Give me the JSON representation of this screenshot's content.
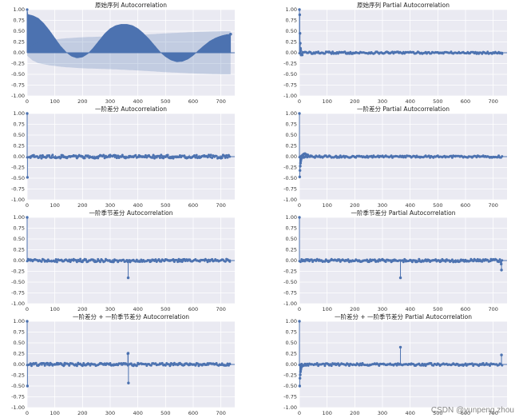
{
  "watermark": "CSDN @yunpeng.zhou",
  "style": {
    "background": "#eaeaf2",
    "grid": "#ffffff",
    "series_color": "#4c72b0",
    "band_color": "#4c72b0"
  },
  "chart_data": [
    {
      "type": "stem",
      "title": "原始序列 Autocorrelation",
      "xlim": [
        0,
        750
      ],
      "ylim": [
        -1.0,
        1.0
      ],
      "xticks": [
        "0",
        "100",
        "200",
        "300",
        "400",
        "500",
        "600",
        "700"
      ],
      "yticks": [
        "-1.00",
        "-0.75",
        "-0.50",
        "-0.25",
        "0.00",
        "0.25",
        "0.50",
        "0.75",
        "1.00"
      ],
      "series": [
        {
          "kind": "wave",
          "points": [
            [
              0,
              1.0
            ],
            [
              1,
              0.89
            ],
            [
              20,
              0.86
            ],
            [
              40,
              0.8
            ],
            [
              60,
              0.68
            ],
            [
              80,
              0.52
            ],
            [
              100,
              0.34
            ],
            [
              120,
              0.16
            ],
            [
              140,
              0.02
            ],
            [
              160,
              -0.08
            ],
            [
              180,
              -0.12
            ],
            [
              200,
              -0.1
            ],
            [
              220,
              -0.02
            ],
            [
              240,
              0.12
            ],
            [
              260,
              0.28
            ],
            [
              280,
              0.44
            ],
            [
              300,
              0.56
            ],
            [
              320,
              0.63
            ],
            [
              340,
              0.66
            ],
            [
              360,
              0.66
            ],
            [
              380,
              0.63
            ],
            [
              400,
              0.56
            ],
            [
              420,
              0.45
            ],
            [
              440,
              0.32
            ],
            [
              460,
              0.17
            ],
            [
              480,
              0.02
            ],
            [
              500,
              -0.09
            ],
            [
              520,
              -0.17
            ],
            [
              540,
              -0.21
            ],
            [
              560,
              -0.2
            ],
            [
              580,
              -0.15
            ],
            [
              600,
              -0.06
            ],
            [
              620,
              0.06
            ],
            [
              640,
              0.17
            ],
            [
              660,
              0.27
            ],
            [
              680,
              0.34
            ],
            [
              700,
              0.39
            ],
            [
              720,
              0.42
            ],
            [
              735,
              0.43
            ]
          ]
        },
        {
          "kind": "band",
          "points": [
            [
              0,
              0.07
            ],
            [
              20,
              0.18
            ],
            [
              40,
              0.24
            ],
            [
              80,
              0.29
            ],
            [
              130,
              0.33
            ],
            [
              200,
              0.36
            ],
            [
              300,
              0.38
            ],
            [
              400,
              0.41
            ],
            [
              500,
              0.45
            ],
            [
              600,
              0.48
            ],
            [
              700,
              0.5
            ],
            [
              735,
              0.5
            ]
          ]
        }
      ]
    },
    {
      "type": "stem",
      "title": "原始序列 Partial Autocorrelation",
      "xlim": [
        0,
        750
      ],
      "ylim": [
        -1.0,
        1.0
      ],
      "xticks": [
        "0",
        "100",
        "200",
        "300",
        "400",
        "500",
        "600",
        "700"
      ],
      "yticks": [
        "-1.00",
        "-0.75",
        "-0.50",
        "-0.25",
        "0.00",
        "0.25",
        "0.50",
        "0.75",
        "1.00"
      ],
      "series": [
        {
          "kind": "noise",
          "amp": 0.025,
          "seed": 11,
          "spikes": [
            [
              0,
              1.0
            ],
            [
              1,
              0.88
            ],
            [
              2,
              0.45
            ],
            [
              3,
              0.22
            ],
            [
              4,
              0.1
            ],
            [
              5,
              0.05
            ],
            [
              6,
              -0.05
            ],
            [
              8,
              -0.03
            ],
            [
              10,
              -0.05
            ]
          ]
        }
      ]
    },
    {
      "type": "stem",
      "title": "一阶差分 Autocorrelation",
      "xlim": [
        0,
        750
      ],
      "ylim": [
        -1.0,
        1.0
      ],
      "xticks": [
        "0",
        "100",
        "200",
        "300",
        "400",
        "500",
        "600",
        "700"
      ],
      "yticks": [
        "-1.00",
        "-0.75",
        "-0.50",
        "-0.25",
        "0.00",
        "0.25",
        "0.50",
        "0.75",
        "1.00"
      ],
      "series": [
        {
          "kind": "noise",
          "amp": 0.04,
          "seed": 23,
          "spikes": [
            [
              0,
              1.0
            ],
            [
              1,
              -0.48
            ]
          ]
        }
      ]
    },
    {
      "type": "stem",
      "title": "一阶差分 Partial Autocorrelation",
      "xlim": [
        0,
        750
      ],
      "ylim": [
        -1.0,
        1.0
      ],
      "xticks": [
        "0",
        "100",
        "200",
        "300",
        "400",
        "500",
        "600",
        "700"
      ],
      "yticks": [
        "-1.00",
        "-0.75",
        "-0.50",
        "-0.25",
        "0.00",
        "0.25",
        "0.50",
        "0.75",
        "1.00"
      ],
      "series": [
        {
          "kind": "noise",
          "amp": 0.025,
          "seed": 37,
          "spikes": [
            [
              0,
              1.0
            ],
            [
              1,
              -0.47
            ],
            [
              2,
              -0.32
            ],
            [
              3,
              -0.22
            ],
            [
              4,
              -0.15
            ],
            [
              5,
              -0.1
            ],
            [
              6,
              -0.06
            ],
            [
              8,
              -0.03
            ],
            [
              12,
              0.04
            ],
            [
              16,
              0.06
            ],
            [
              20,
              0.07
            ],
            [
              25,
              0.05
            ],
            [
              30,
              0.04
            ],
            [
              40,
              0.02
            ]
          ]
        }
      ]
    },
    {
      "type": "stem",
      "title": "一阶季节差分 Autocorrelation",
      "xlim": [
        0,
        750
      ],
      "ylim": [
        -1.0,
        1.0
      ],
      "xticks": [
        "0",
        "100",
        "200",
        "300",
        "400",
        "500",
        "600",
        "700"
      ],
      "yticks": [
        "-1.00",
        "-0.75",
        "-0.50",
        "-0.25",
        "0.00",
        "0.25",
        "0.50",
        "0.75",
        "1.00"
      ],
      "series": [
        {
          "kind": "noise",
          "amp": 0.035,
          "seed": 41,
          "spikes": [
            [
              0,
              1.0
            ],
            [
              365,
              -0.4
            ]
          ]
        }
      ]
    },
    {
      "type": "stem",
      "title": "一阶季节差分 Partial Autocorrelation",
      "xlim": [
        0,
        750
      ],
      "ylim": [
        -1.0,
        1.0
      ],
      "xticks": [
        "0",
        "100",
        "200",
        "300",
        "400",
        "500",
        "600",
        "700"
      ],
      "yticks": [
        "-1.00",
        "-0.75",
        "-0.50",
        "-0.25",
        "0.00",
        "0.25",
        "0.50",
        "0.75",
        "1.00"
      ],
      "series": [
        {
          "kind": "noise",
          "amp": 0.035,
          "seed": 53,
          "spikes": [
            [
              0,
              1.0
            ],
            [
              365,
              -0.4
            ],
            [
              729,
              -0.08
            ],
            [
              730,
              -0.22
            ]
          ]
        }
      ]
    },
    {
      "type": "stem",
      "title": "一阶差分 + 一阶季节差分 Autocorrelation",
      "xlim": [
        0,
        750
      ],
      "ylim": [
        -1.0,
        1.0
      ],
      "xticks": [
        "0",
        "100",
        "200",
        "300",
        "400",
        "500",
        "600",
        "700"
      ],
      "yticks": [
        "-1.00",
        "-0.75",
        "-0.50",
        "-0.25",
        "0.00",
        "0.25",
        "0.50",
        "0.75",
        "1.00"
      ],
      "series": [
        {
          "kind": "noise",
          "amp": 0.035,
          "seed": 67,
          "spikes": [
            [
              0,
              1.0
            ],
            [
              1,
              -0.5
            ],
            [
              364,
              0.25
            ],
            [
              365,
              0.26
            ],
            [
              366,
              -0.43
            ]
          ]
        }
      ]
    },
    {
      "type": "stem",
      "title": "一阶差分 + 一阶季节差分 Partial Autocorrelation",
      "xlim": [
        0,
        750
      ],
      "ylim": [
        -1.0,
        1.0
      ],
      "xticks": [
        "0",
        "100",
        "200",
        "300",
        "400",
        "500",
        "600",
        "700"
      ],
      "yticks": [
        "-1.00",
        "-0.75",
        "-0.50",
        "-0.25",
        "0.00",
        "0.25",
        "0.50",
        "0.75",
        "1.00"
      ],
      "series": [
        {
          "kind": "noise",
          "amp": 0.03,
          "seed": 79,
          "spikes": [
            [
              0,
              1.0
            ],
            [
              1,
              -0.5
            ],
            [
              2,
              -0.32
            ],
            [
              3,
              -0.24
            ],
            [
              4,
              -0.17
            ],
            [
              5,
              -0.12
            ],
            [
              6,
              -0.08
            ],
            [
              8,
              -0.05
            ],
            [
              12,
              -0.03
            ],
            [
              365,
              0.4
            ],
            [
              730,
              0.22
            ]
          ]
        }
      ]
    }
  ]
}
